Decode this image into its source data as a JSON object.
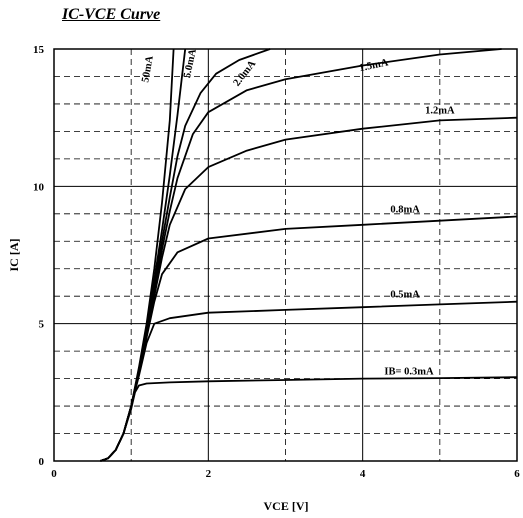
{
  "chart_data": {
    "type": "line",
    "title": "IC-VCE Curve",
    "xlabel": "VCE  [V]",
    "ylabel": "IC  [A]",
    "xlim": [
      0,
      6
    ],
    "ylim": [
      0,
      15
    ],
    "xticks": [
      "0",
      "2",
      "4",
      "6"
    ],
    "yticks": [
      "0",
      "5",
      "10",
      "15"
    ],
    "grid": "major solid, minor dashed",
    "series": [
      {
        "name": "IB= 0.3mA",
        "x": [
          0.6,
          0.7,
          0.8,
          0.9,
          1.0,
          1.05,
          1.1,
          1.2,
          1.5,
          2.0,
          3.0,
          4.0,
          5.0,
          6.0
        ],
        "y": [
          0,
          0.1,
          0.4,
          1.0,
          1.9,
          2.5,
          2.75,
          2.82,
          2.86,
          2.9,
          2.95,
          3.0,
          3.02,
          3.05
        ]
      },
      {
        "name": "0.5mA",
        "x": [
          0.6,
          0.7,
          0.8,
          0.9,
          1.0,
          1.1,
          1.2,
          1.3,
          1.5,
          2.0,
          3.0,
          4.0,
          5.0,
          6.0
        ],
        "y": [
          0,
          0.1,
          0.4,
          1.0,
          2.0,
          3.1,
          4.3,
          5.0,
          5.2,
          5.4,
          5.5,
          5.6,
          5.7,
          5.8
        ]
      },
      {
        "name": "0.8mA",
        "x": [
          0.6,
          0.7,
          0.8,
          0.9,
          1.0,
          1.1,
          1.2,
          1.3,
          1.4,
          1.6,
          2.0,
          3.0,
          4.0,
          5.0,
          6.0
        ],
        "y": [
          0,
          0.1,
          0.4,
          1.0,
          2.0,
          3.2,
          4.5,
          5.8,
          6.8,
          7.6,
          8.1,
          8.45,
          8.6,
          8.75,
          8.9
        ]
      },
      {
        "name": "1.2mA",
        "x": [
          0.6,
          0.7,
          0.8,
          0.9,
          1.0,
          1.1,
          1.2,
          1.3,
          1.4,
          1.5,
          1.7,
          2.0,
          2.5,
          3.0,
          4.0,
          5.0,
          6.0
        ],
        "y": [
          0,
          0.1,
          0.4,
          1.0,
          2.0,
          3.2,
          4.6,
          6.0,
          7.4,
          8.6,
          9.9,
          10.7,
          11.3,
          11.7,
          12.1,
          12.4,
          12.5
        ]
      },
      {
        "name": "1.5mA",
        "x": [
          0.6,
          0.7,
          0.8,
          0.9,
          1.0,
          1.1,
          1.2,
          1.3,
          1.4,
          1.5,
          1.6,
          1.8,
          2.0,
          2.5,
          3.0,
          4.0,
          5.0,
          5.8
        ],
        "y": [
          0,
          0.1,
          0.4,
          1.0,
          2.0,
          3.2,
          4.7,
          6.2,
          7.7,
          9.1,
          10.3,
          11.9,
          12.7,
          13.5,
          13.9,
          14.4,
          14.8,
          15.0
        ]
      },
      {
        "name": "2.0mA",
        "x": [
          0.6,
          0.7,
          0.8,
          0.9,
          1.0,
          1.1,
          1.2,
          1.3,
          1.4,
          1.5,
          1.6,
          1.7,
          1.9,
          2.1,
          2.4,
          2.8
        ],
        "y": [
          0,
          0.1,
          0.4,
          1.0,
          2.0,
          3.3,
          4.8,
          6.4,
          8.0,
          9.6,
          11.1,
          12.2,
          13.4,
          14.1,
          14.6,
          15.0
        ]
      },
      {
        "name": "5.0mA",
        "x": [
          0.6,
          0.7,
          0.8,
          0.9,
          1.0,
          1.1,
          1.2,
          1.3,
          1.4,
          1.5,
          1.6,
          1.7
        ],
        "y": [
          0,
          0.1,
          0.4,
          1.0,
          2.0,
          3.3,
          4.9,
          6.6,
          8.4,
          10.4,
          12.6,
          15.0
        ]
      },
      {
        "name": "50mA",
        "x": [
          0.6,
          0.7,
          0.8,
          0.9,
          1.0,
          1.1,
          1.2,
          1.3,
          1.4,
          1.5,
          1.55
        ],
        "y": [
          0,
          0.1,
          0.4,
          1.0,
          2.0,
          3.4,
          5.0,
          7.0,
          9.4,
          12.4,
          15.0
        ]
      }
    ]
  }
}
